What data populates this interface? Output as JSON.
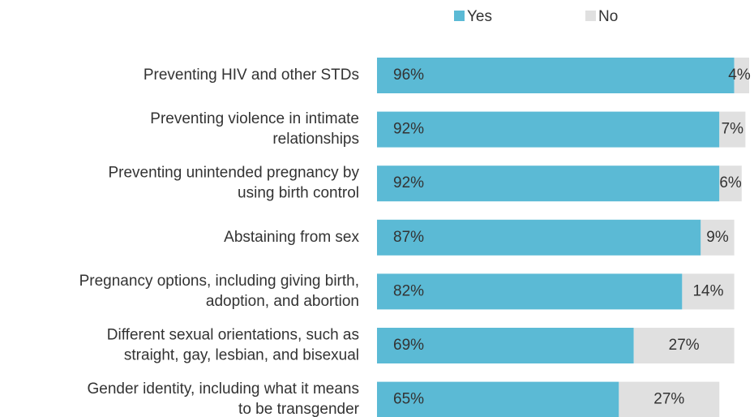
{
  "chart_data": {
    "type": "stacked-bar-horizontal",
    "categories": [
      [
        "Preventing HIV and other STDs"
      ],
      [
        "Preventing violence in intimate",
        "relationships"
      ],
      [
        "Preventing unintended pregnancy by",
        "using birth control"
      ],
      [
        "Abstaining from sex"
      ],
      [
        "Pregnancy options, including giving birth,",
        "adoption, and abortion"
      ],
      [
        "Different sexual orientations, such as",
        "straight, gay, lesbian, and bisexual"
      ],
      [
        "Gender identity, including what it means",
        "to be transgender"
      ]
    ],
    "series": [
      {
        "name": "Yes",
        "color": "#5bbad5",
        "values": [
          96,
          92,
          92,
          87,
          82,
          69,
          65
        ],
        "value_labels": [
          "96%",
          "92%",
          "92%",
          "87%",
          "82%",
          "69%",
          "65%"
        ]
      },
      {
        "name": "No",
        "color": "#e0e0e0",
        "values": [
          4,
          7,
          6,
          9,
          14,
          27,
          27
        ],
        "value_labels": [
          "4%",
          "7%",
          "6%",
          "9%",
          "14%",
          "27%",
          "27%"
        ]
      }
    ],
    "xlim": [
      0,
      100
    ],
    "legend": "top"
  }
}
